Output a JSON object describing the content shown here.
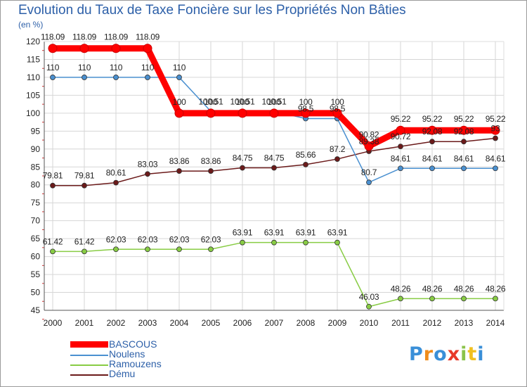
{
  "chart_data": {
    "type": "line",
    "title": "Evolution du Taux de Taxe Foncière sur les Propriétés Non Bâties",
    "ylabel": "(en %)",
    "xlabel": "",
    "ylim": [
      45,
      120
    ],
    "yticks": [
      "45",
      "50",
      "55",
      "60",
      "65",
      "70",
      "75",
      "80",
      "85",
      "90",
      "95",
      "100",
      "105",
      "110",
      "115",
      "120"
    ],
    "categories": [
      "2000",
      "2001",
      "2002",
      "2003",
      "2004",
      "2005",
      "2006",
      "2007",
      "2008",
      "2009",
      "2010",
      "2011",
      "2012",
      "2013",
      "2014"
    ],
    "grid": true,
    "series": [
      {
        "name": "BASCOUS",
        "color": "#ff0000",
        "values": [
          118.09,
          118.09,
          118.09,
          118.09,
          100,
          100,
          100,
          100,
          100,
          100,
          90.82,
          95.22,
          95.22,
          95.22,
          95.22
        ],
        "labels": [
          "118.09",
          "118.09",
          "118.09",
          "118.09",
          "100",
          "100",
          "100",
          "100",
          "100",
          "100",
          "90.82",
          "95.22",
          "95.22",
          "95.22",
          "95.22"
        ]
      },
      {
        "name": "Noulens",
        "color": "#4a90d0",
        "values": [
          110,
          110,
          110,
          110,
          110,
          100.51,
          100.51,
          100.51,
          98.5,
          98.5,
          80.7,
          84.61,
          84.61,
          84.61,
          84.61
        ],
        "labels": [
          "110",
          "110",
          "110",
          "110",
          "110",
          "100.51",
          "100.51",
          "100.51",
          "98.5",
          "98.5",
          "80.7",
          "84.61",
          "84.61",
          "84.61",
          "84.61"
        ]
      },
      {
        "name": "Ramouzens",
        "color": "#88cc44",
        "values": [
          61.42,
          61.42,
          62.03,
          62.03,
          62.03,
          62.03,
          63.91,
          63.91,
          63.91,
          63.91,
          46.03,
          48.26,
          48.26,
          48.26,
          48.26
        ],
        "labels": [
          "61.42",
          "61.42",
          "62.03",
          "62.03",
          "62.03",
          "62.03",
          "63.91",
          "63.91",
          "63.91",
          "63.91",
          "46.03",
          "48.26",
          "48.26",
          "48.26",
          "48.26"
        ]
      },
      {
        "name": "Dému",
        "color": "#6b1a1a",
        "values": [
          79.81,
          79.81,
          80.61,
          83.03,
          83.86,
          83.86,
          84.75,
          84.75,
          85.66,
          87.2,
          89.38,
          90.72,
          92.08,
          92.08,
          93
        ],
        "labels": [
          "79.81",
          "79.81",
          "80.61",
          "83.03",
          "83.86",
          "83.86",
          "84.75",
          "84.75",
          "85.66",
          "87.2",
          "89.38",
          "90.72",
          "92.08",
          "92.08",
          "93"
        ]
      }
    ]
  },
  "logo": {
    "text": "Proxiti"
  }
}
